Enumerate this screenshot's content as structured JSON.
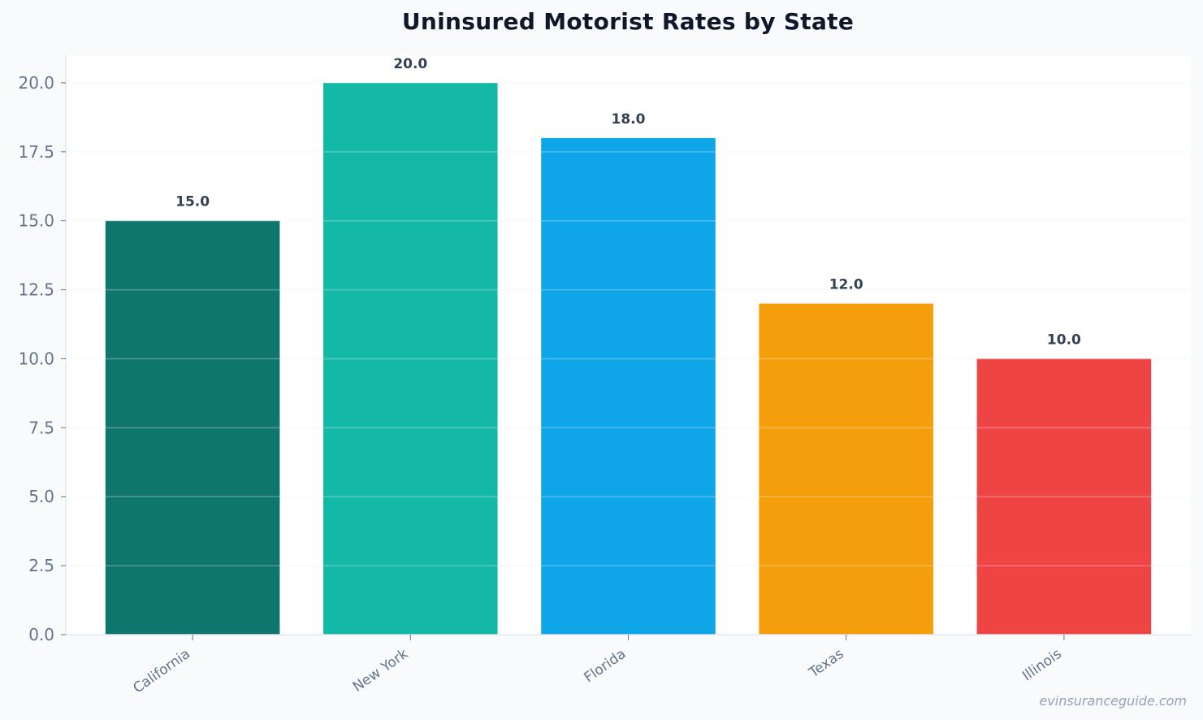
{
  "chart_data": {
    "type": "bar",
    "title": "Uninsured Motorist Rates by State",
    "xlabel": "",
    "ylabel": "",
    "categories": [
      "California",
      "New York",
      "Florida",
      "Texas",
      "Illinois"
    ],
    "values": [
      15.0,
      20.0,
      18.0,
      12.0,
      10.0
    ],
    "value_labels": [
      "15.0",
      "20.0",
      "18.0",
      "12.0",
      "10.0"
    ],
    "colors": [
      "#0f766e",
      "#14b8a6",
      "#0ea5e9",
      "#f59e0b",
      "#ef4444"
    ],
    "ylim": [
      0,
      21
    ],
    "yticks": [
      0.0,
      2.5,
      5.0,
      7.5,
      10.0,
      12.5,
      15.0,
      17.5,
      20.0
    ],
    "ytick_labels": [
      "0.0",
      "2.5",
      "5.0",
      "7.5",
      "10.0",
      "12.5",
      "15.0",
      "17.5",
      "20.0"
    ],
    "grid": true,
    "legend": "none"
  },
  "watermark": "evinsuranceguide.com"
}
